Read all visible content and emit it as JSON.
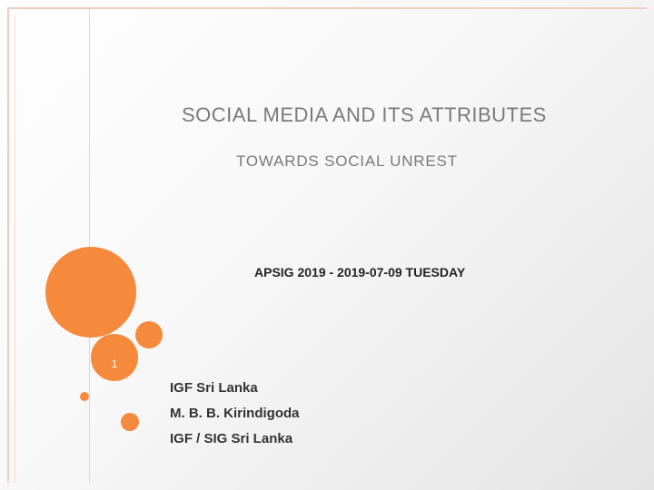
{
  "slide": {
    "title_line1": "SOCIAL MEDIA AND ITS ATTRIBUTES",
    "title_line2": "TOWARDS SOCIAL UNREST",
    "subtitle": "APSIG 2019 - 2019-07-09 TUESDAY",
    "number": "1",
    "authors": [
      "IGF Sri Lanka",
      "M. B. B. Kirindigoda",
      "IGF / SIG Sri Lanka"
    ]
  },
  "colors": {
    "accent": "#f58a3d",
    "title_text": "#7a7a7a",
    "frame": "#f0cdbd"
  }
}
